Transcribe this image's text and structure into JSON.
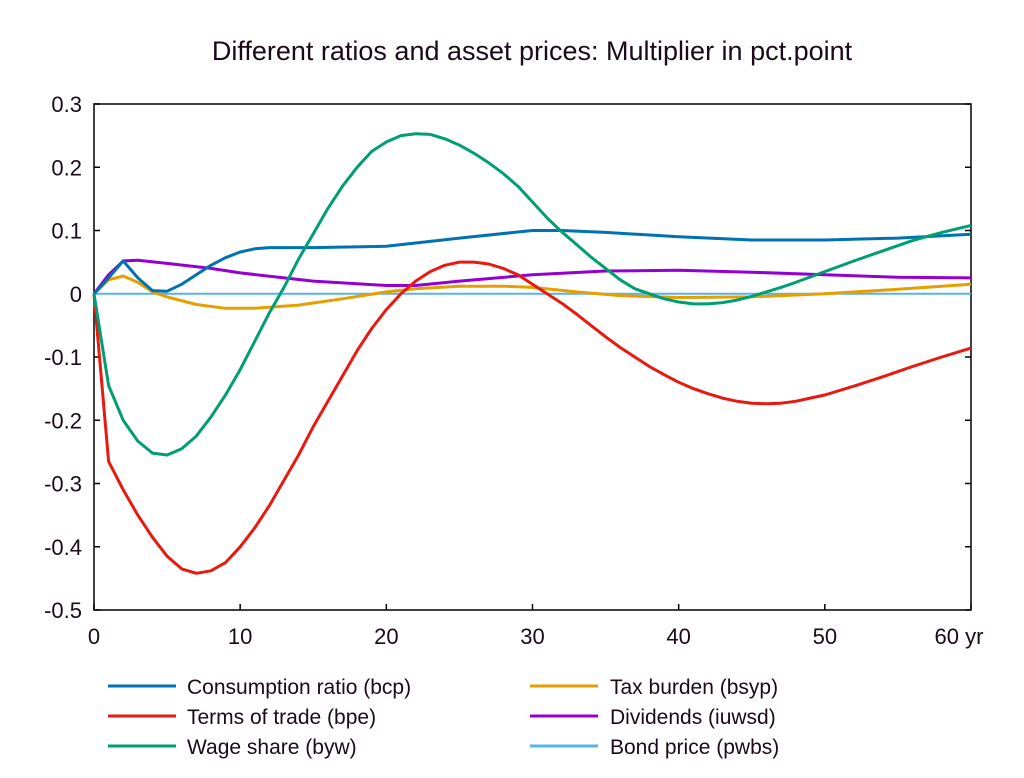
{
  "chart_data": {
    "type": "line",
    "title": "Different ratios and asset prices: Multiplier in pct.point",
    "xlabel": "",
    "ylabel": "",
    "xlim": [
      0,
      60
    ],
    "ylim": [
      -0.5,
      0.3
    ],
    "x_ticks": [
      "0",
      "10",
      "20",
      "30",
      "40",
      "50",
      "60 yr"
    ],
    "x_tick_values": [
      0,
      10,
      20,
      30,
      40,
      50,
      60
    ],
    "y_ticks": [
      "0.3",
      "0.2",
      "0.1",
      "0",
      "-0.1",
      "-0.2",
      "-0.3",
      "-0.4",
      "-0.5"
    ],
    "y_tick_values": [
      0.3,
      0.2,
      0.1,
      0,
      -0.1,
      -0.2,
      -0.3,
      -0.4,
      -0.5
    ],
    "grid": false,
    "legend_position": "bottom",
    "series": [
      {
        "name": "Consumption ratio (bcp)",
        "color": "#0072b2",
        "x": [
          0,
          1,
          2,
          3,
          4,
          5,
          6,
          7,
          8,
          9,
          10,
          11,
          12,
          15,
          20,
          25,
          30,
          32,
          35,
          40,
          45,
          50,
          55,
          60
        ],
        "y": [
          0,
          0.025,
          0.052,
          0.025,
          0.005,
          0.004,
          0.015,
          0.03,
          0.045,
          0.057,
          0.066,
          0.071,
          0.073,
          0.073,
          0.075,
          0.088,
          0.1,
          0.1,
          0.097,
          0.09,
          0.085,
          0.085,
          0.088,
          0.094
        ]
      },
      {
        "name": "Terms of trade (bpe)",
        "color": "#e8190f",
        "x": [
          0,
          1,
          2,
          3,
          4,
          5,
          6,
          7,
          8,
          9,
          10,
          11,
          12,
          13,
          14,
          15,
          16,
          17,
          18,
          19,
          20,
          21,
          22,
          23,
          24,
          25,
          26,
          27,
          28,
          29,
          30,
          31,
          32,
          33,
          34,
          35,
          36,
          37,
          38,
          39,
          40,
          41,
          42,
          43,
          44,
          45,
          46,
          47,
          48,
          49,
          50,
          52,
          54,
          56,
          58,
          60
        ],
        "y": [
          0,
          -0.265,
          -0.31,
          -0.35,
          -0.385,
          -0.415,
          -0.435,
          -0.442,
          -0.438,
          -0.425,
          -0.4,
          -0.37,
          -0.335,
          -0.295,
          -0.255,
          -0.21,
          -0.17,
          -0.13,
          -0.09,
          -0.055,
          -0.025,
          0,
          0.02,
          0.035,
          0.045,
          0.05,
          0.05,
          0.047,
          0.04,
          0.03,
          0.015,
          0,
          -0.015,
          -0.032,
          -0.05,
          -0.068,
          -0.085,
          -0.1,
          -0.115,
          -0.128,
          -0.14,
          -0.15,
          -0.158,
          -0.165,
          -0.17,
          -0.173,
          -0.174,
          -0.173,
          -0.17,
          -0.165,
          -0.16,
          -0.146,
          -0.131,
          -0.115,
          -0.1,
          -0.086
        ]
      },
      {
        "name": "Wage share (byw)",
        "color": "#009e73",
        "x": [
          0,
          1,
          2,
          3,
          4,
          5,
          6,
          7,
          8,
          9,
          10,
          11,
          12,
          13,
          14,
          15,
          16,
          17,
          18,
          19,
          20,
          21,
          22,
          23,
          24,
          25,
          26,
          27,
          28,
          29,
          30,
          31,
          32,
          33,
          34,
          35,
          36,
          37,
          38,
          39,
          40,
          41,
          42,
          43,
          44,
          45,
          46,
          47,
          48,
          50,
          52,
          54,
          56,
          58,
          60
        ],
        "y": [
          0,
          -0.145,
          -0.2,
          -0.233,
          -0.252,
          -0.255,
          -0.245,
          -0.225,
          -0.195,
          -0.16,
          -0.12,
          -0.075,
          -0.03,
          0.01,
          0.055,
          0.095,
          0.135,
          0.17,
          0.2,
          0.225,
          0.24,
          0.25,
          0.253,
          0.252,
          0.245,
          0.235,
          0.222,
          0.207,
          0.19,
          0.17,
          0.145,
          0.12,
          0.098,
          0.078,
          0.058,
          0.04,
          0.022,
          0.008,
          0,
          -0.008,
          -0.013,
          -0.016,
          -0.016,
          -0.014,
          -0.01,
          -0.004,
          0.003,
          0.01,
          0.018,
          0.035,
          0.052,
          0.068,
          0.084,
          0.097,
          0.108
        ]
      },
      {
        "name": "Tax burden (bsyp)",
        "color": "#e69f00",
        "x": [
          0,
          1,
          2,
          3,
          4,
          5,
          7,
          9,
          11,
          14,
          17,
          20,
          22,
          25,
          28,
          30,
          33,
          36,
          40,
          45,
          50,
          55,
          60
        ],
        "y": [
          0,
          0.022,
          0.028,
          0.018,
          0.003,
          -0.005,
          -0.017,
          -0.023,
          -0.023,
          -0.018,
          -0.008,
          0.003,
          0.008,
          0.012,
          0.012,
          0.01,
          0.003,
          -0.003,
          -0.006,
          -0.005,
          0,
          0.007,
          0.015
        ]
      },
      {
        "name": "Dividends (iuwsd)",
        "color": "#9400d3",
        "x": [
          0,
          1,
          2,
          3,
          5,
          8,
          10,
          15,
          20,
          22,
          25,
          30,
          35,
          40,
          45,
          50,
          55,
          60
        ],
        "y": [
          0,
          0.03,
          0.052,
          0.053,
          0.048,
          0.04,
          0.033,
          0.02,
          0.013,
          0.013,
          0.02,
          0.03,
          0.036,
          0.037,
          0.034,
          0.03,
          0.026,
          0.025
        ]
      },
      {
        "name": "Bond price (pwbs)",
        "color": "#56b4e9",
        "x": [
          0,
          60
        ],
        "y": [
          0,
          0
        ]
      }
    ]
  }
}
